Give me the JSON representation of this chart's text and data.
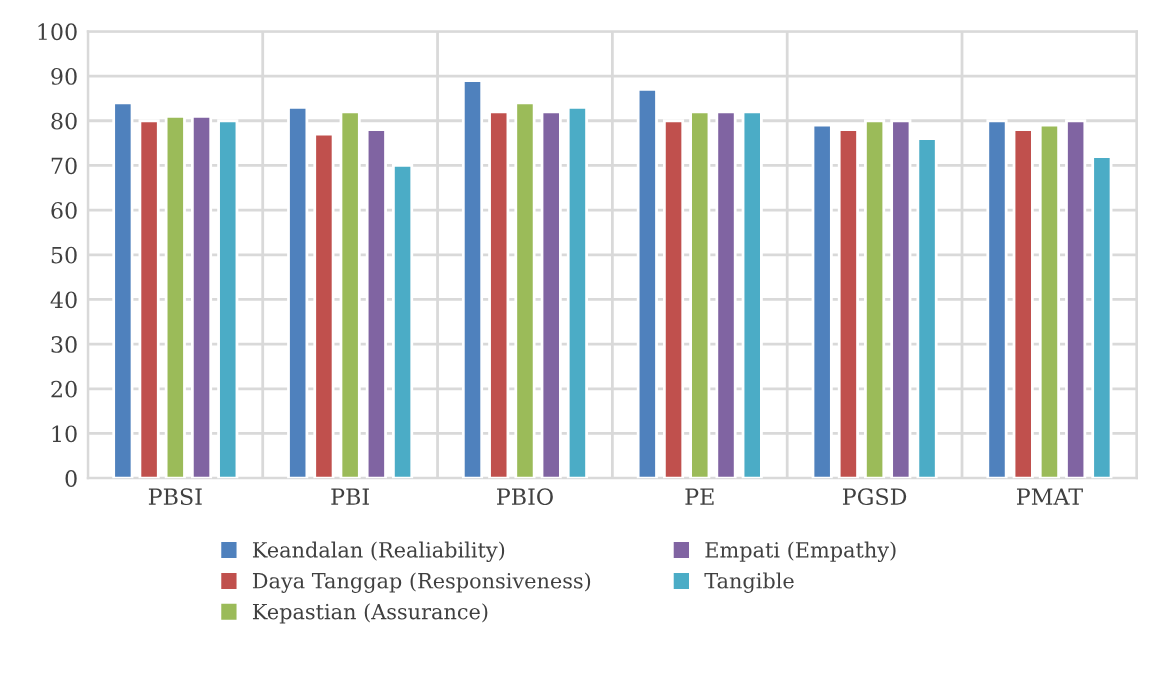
{
  "chart_data": {
    "type": "bar",
    "categories": [
      "PBSI",
      "PBI",
      "PBIO",
      "PE",
      "PGSD",
      "PMAT"
    ],
    "series": [
      {
        "name": "Keandalan (Realiability)",
        "color": "#4f81bd",
        "values": [
          84,
          83,
          89,
          87,
          79,
          80
        ]
      },
      {
        "name": "Daya Tanggap (Responsiveness)",
        "color": "#c0504d",
        "values": [
          80,
          77,
          82,
          80,
          78,
          78
        ]
      },
      {
        "name": "Kepastian (Assurance)",
        "color": "#9bbb59",
        "values": [
          81,
          82,
          84,
          82,
          80,
          79
        ]
      },
      {
        "name": "Empati (Empathy)",
        "color": "#8064a2",
        "values": [
          81,
          78,
          82,
          82,
          80,
          80
        ]
      },
      {
        "name": "Tangible",
        "color": "#4bacc6",
        "values": [
          80,
          70,
          83,
          82,
          76,
          72
        ]
      }
    ],
    "ylim": [
      0,
      100
    ],
    "yticks": [
      0,
      10,
      20,
      30,
      40,
      50,
      60,
      70,
      80,
      90,
      100
    ],
    "grid": true,
    "legend": "bottom"
  }
}
